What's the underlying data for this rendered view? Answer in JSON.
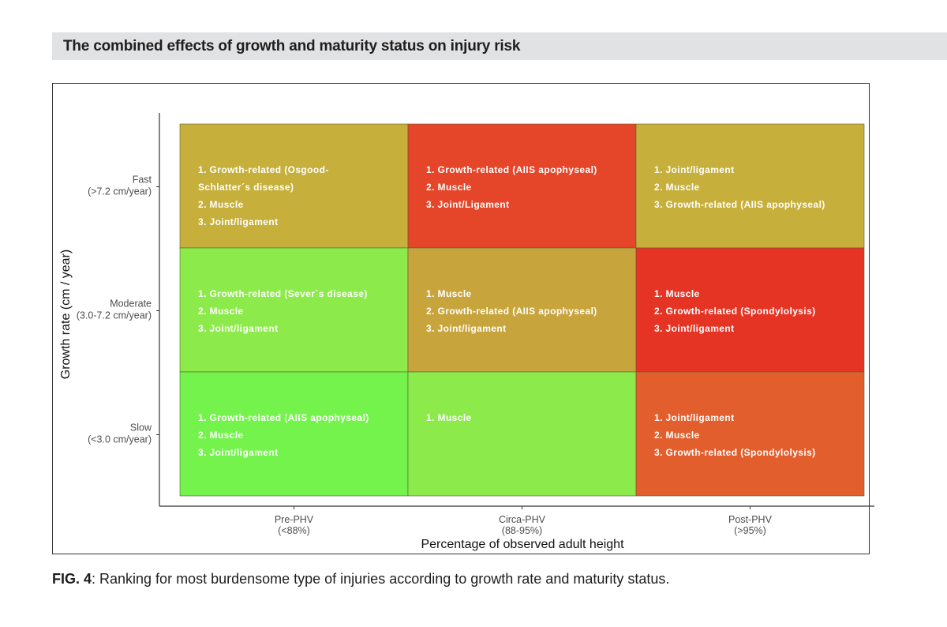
{
  "header": {
    "title": "The combined effects of growth and maturity status on injury risk"
  },
  "caption": {
    "label": "FIG. 4",
    "text": ": Ranking for most burdensome type of injuries according to growth rate and maturity status."
  },
  "chart_data": {
    "type": "heatmap",
    "xlabel": "Percentage of observed adult height",
    "ylabel": "Growth rate (cm / year)",
    "x_categories": [
      {
        "name": "Pre-PHV",
        "range": "(<88%)"
      },
      {
        "name": "Circa-PHV",
        "range": "(88-95%)"
      },
      {
        "name": "Post-PHV",
        "range": "(>95%)"
      }
    ],
    "y_categories": [
      {
        "name": "Fast",
        "range": "(>7.2 cm/year)"
      },
      {
        "name": "Moderate",
        "range": "(3.0-7.2 cm/year)"
      },
      {
        "name": "Slow",
        "range": "(<3.0 cm/year)"
      }
    ],
    "cells": [
      {
        "row": 0,
        "col": 0,
        "color": "#c6af3a",
        "lines": [
          "1.  Growth-related (Osgood-",
          "     Schlatter´s disease)",
          "2.  Muscle",
          "3.  Joint/ligament"
        ]
      },
      {
        "row": 0,
        "col": 1,
        "color": "#e54528",
        "lines": [
          "1.  Growth-related (AIIS apophyseal)",
          "2.  Muscle",
          "3.  Joint/Ligament"
        ]
      },
      {
        "row": 0,
        "col": 2,
        "color": "#c6af3a",
        "lines": [
          "1.  Joint/ligament",
          "2.  Muscle",
          "3.  Growth-related (AIIS apophyseal)"
        ]
      },
      {
        "row": 1,
        "col": 0,
        "color": "#8ceb4a",
        "lines": [
          "1.  Growth-related (Sever´s disease)",
          "2.  Muscle",
          "3.  Joint/ligament"
        ]
      },
      {
        "row": 1,
        "col": 1,
        "color": "#c8a43d",
        "lines": [
          "1.  Muscle",
          "2.  Growth-related (AIIS apophyseal)",
          "3.  Joint/ligament"
        ]
      },
      {
        "row": 1,
        "col": 2,
        "color": "#e53424",
        "lines": [
          "1.  Muscle",
          "2.  Growth-related (Spondylolysis)",
          "3.  Joint/ligament"
        ]
      },
      {
        "row": 2,
        "col": 0,
        "color": "#74f34c",
        "lines": [
          "1.  Growth-related (AIIS apophyseal)",
          "2.  Muscle",
          "3.  Joint/ligament"
        ]
      },
      {
        "row": 2,
        "col": 1,
        "color": "#8ceb4a",
        "lines": [
          "1.  Muscle"
        ]
      },
      {
        "row": 2,
        "col": 2,
        "color": "#e25f2d",
        "lines": [
          "1.  Joint/ligament",
          "2.  Muscle",
          "3.  Growth-related (Spondylolysis)"
        ]
      }
    ]
  }
}
